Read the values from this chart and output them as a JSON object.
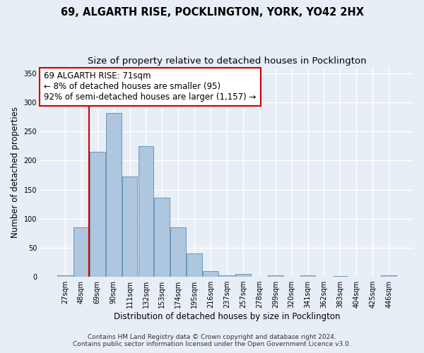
{
  "title": "69, ALGARTH RISE, POCKLINGTON, YORK, YO42 2HX",
  "subtitle": "Size of property relative to detached houses in Pocklington",
  "xlabel": "Distribution of detached houses by size in Pocklington",
  "ylabel": "Number of detached properties",
  "categories": [
    "27sqm",
    "48sqm",
    "69sqm",
    "90sqm",
    "111sqm",
    "132sqm",
    "153sqm",
    "174sqm",
    "195sqm",
    "216sqm",
    "237sqm",
    "257sqm",
    "278sqm",
    "299sqm",
    "320sqm",
    "341sqm",
    "362sqm",
    "383sqm",
    "404sqm",
    "425sqm",
    "446sqm"
  ],
  "bar_heights": [
    3,
    85,
    215,
    282,
    172,
    225,
    136,
    85,
    40,
    10,
    3,
    5,
    0,
    3,
    0,
    3,
    0,
    1,
    0,
    0,
    2
  ],
  "bar_color": "#aec6de",
  "bar_edge_color": "#6699bb",
  "background_color": "#e8eef5",
  "grid_color": "#ffffff",
  "vline_color": "#cc0000",
  "annotation_text": "69 ALGARTH RISE: 71sqm\n← 8% of detached houses are smaller (95)\n92% of semi-detached houses are larger (1,157) →",
  "annotation_box_color": "white",
  "annotation_box_edge": "#cc0000",
  "ylim": [
    0,
    360
  ],
  "yticks": [
    0,
    50,
    100,
    150,
    200,
    250,
    300,
    350
  ],
  "footer_line1": "Contains HM Land Registry data © Crown copyright and database right 2024.",
  "footer_line2": "Contains public sector information licensed under the Open Government Licence v3.0.",
  "title_fontsize": 10.5,
  "subtitle_fontsize": 9.5,
  "xlabel_fontsize": 8.5,
  "ylabel_fontsize": 8.5,
  "tick_fontsize": 7,
  "annotation_fontsize": 8.5,
  "footer_fontsize": 6.5
}
